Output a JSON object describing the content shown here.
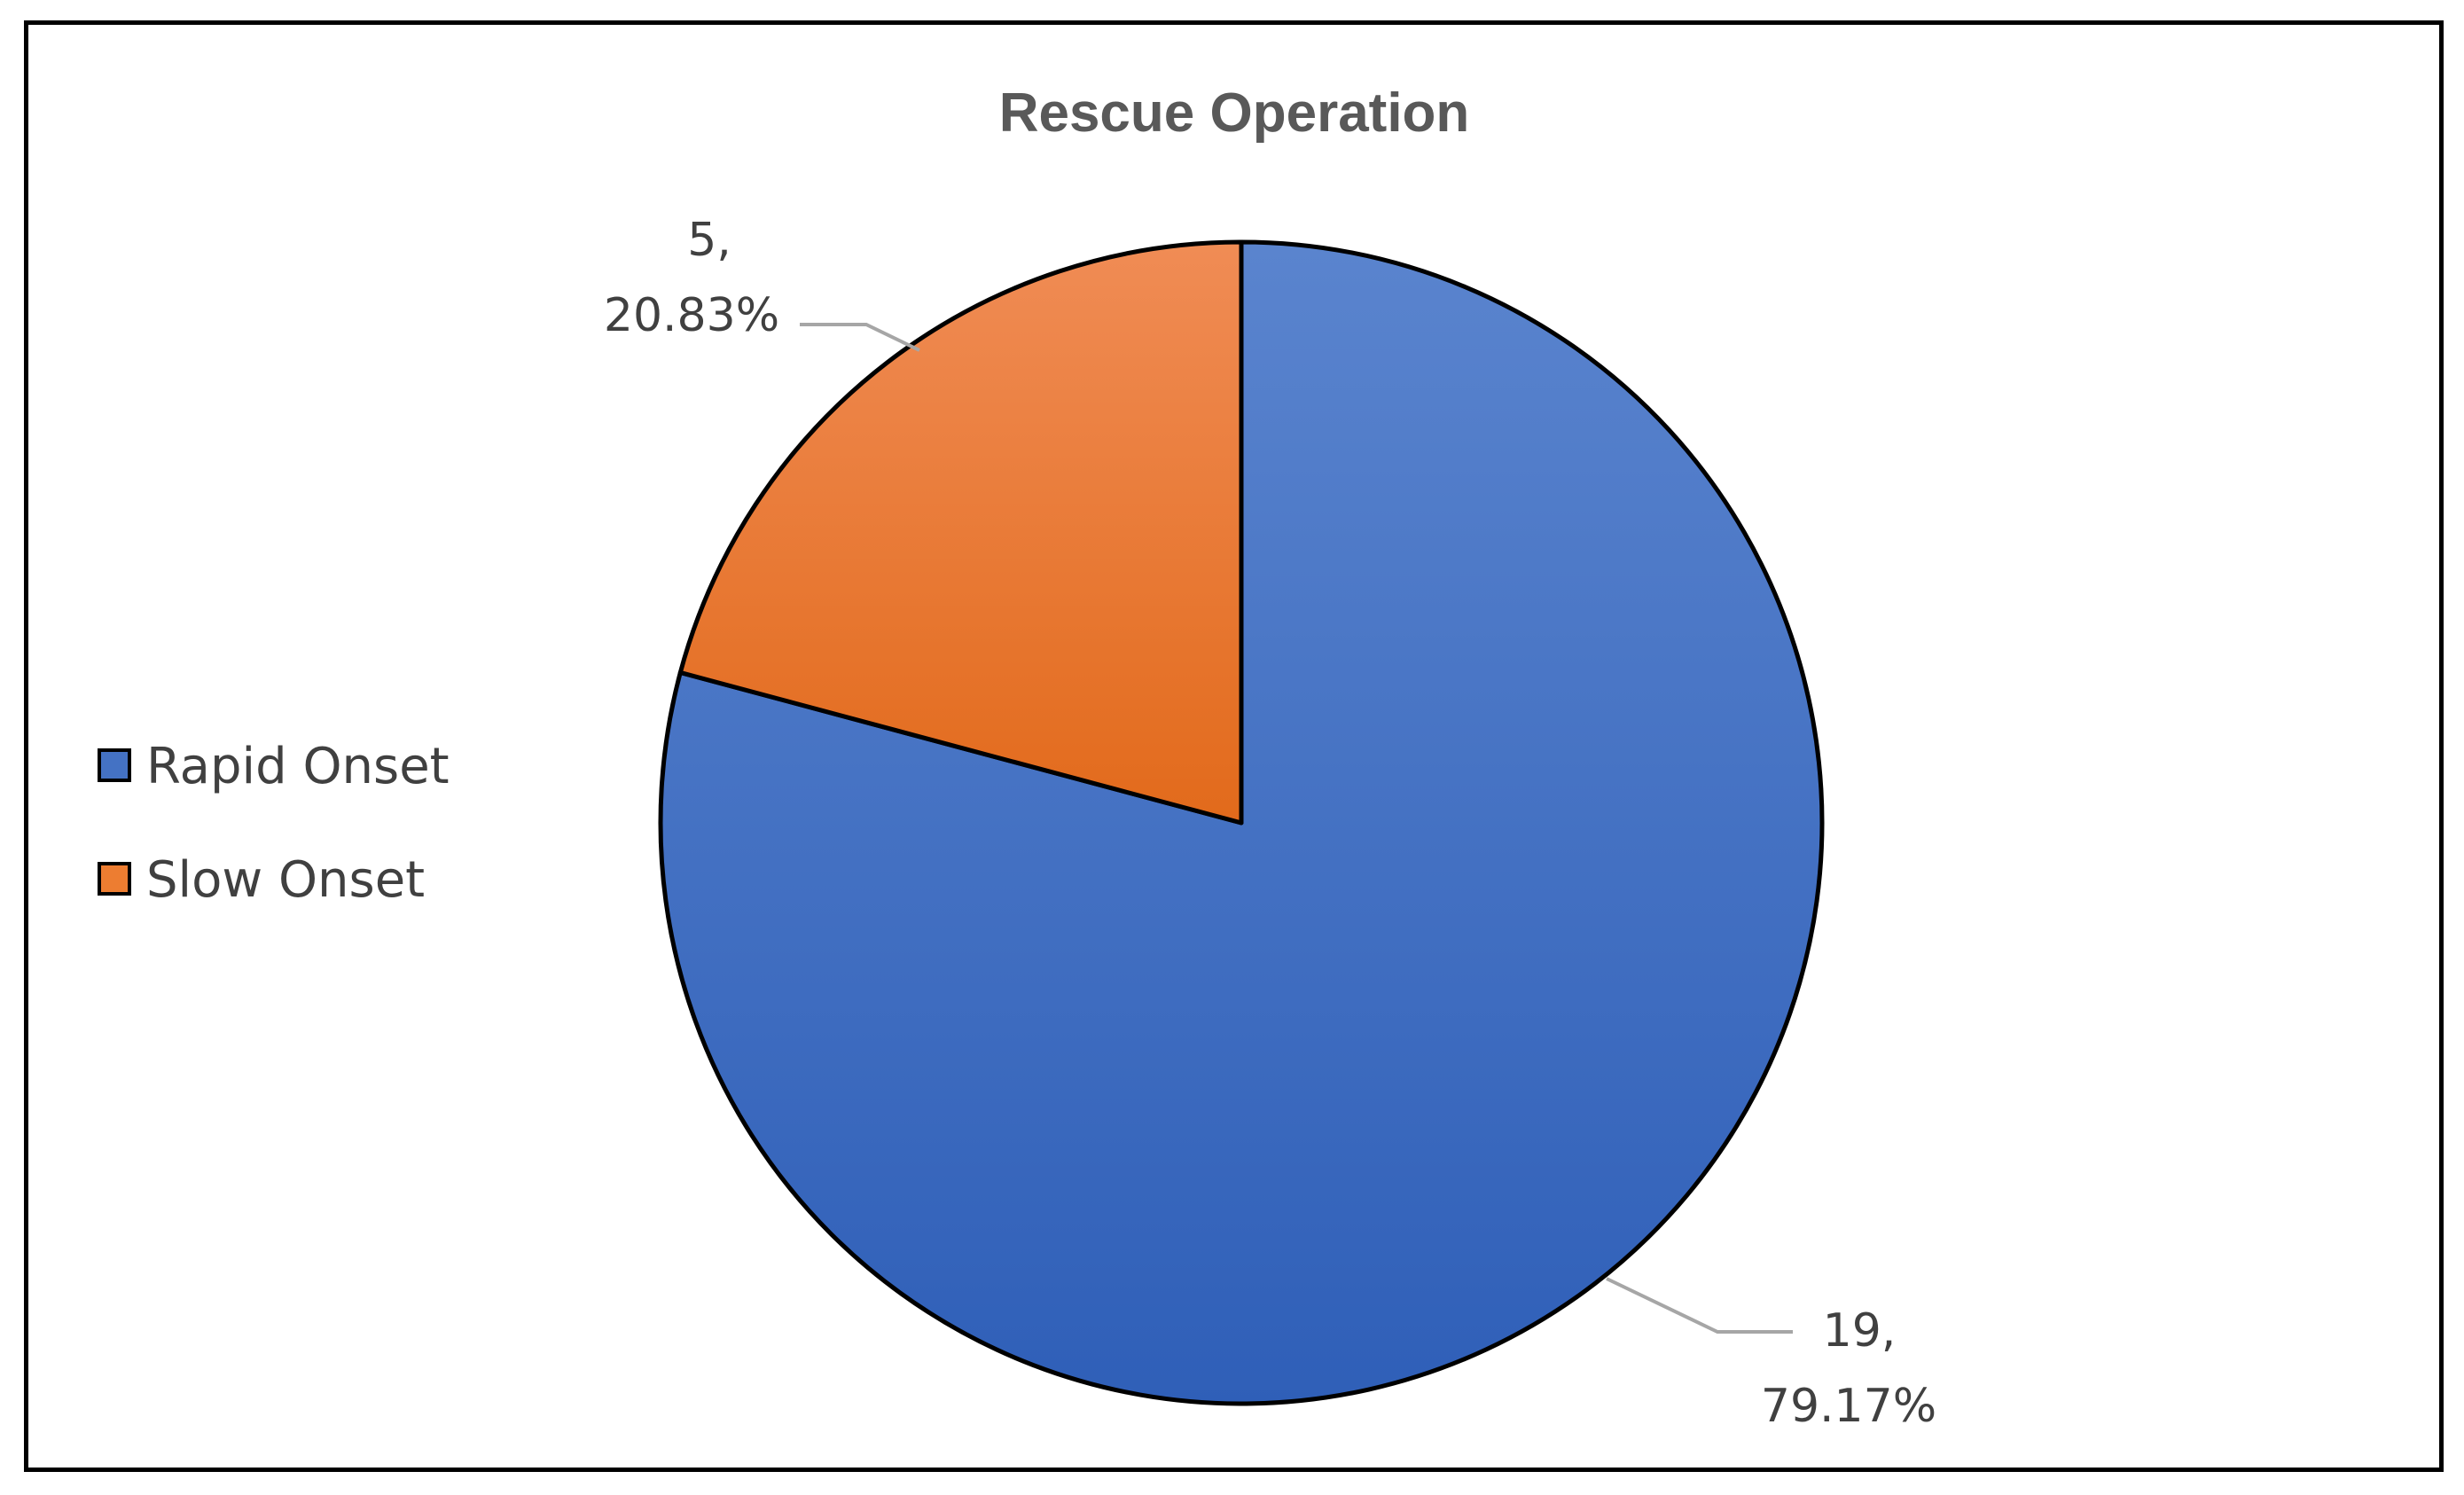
{
  "chart_data": {
    "type": "pie",
    "title": "Rescue Operation",
    "start_angle_deg": 0,
    "direction": "clockwise",
    "slices": [
      {
        "label": "Rapid Onset",
        "value": 19,
        "percent": "79.17%",
        "value_text": "19,",
        "color": "#4472C4",
        "color_light": "#5A84CE",
        "color_dark": "#2F5FB8"
      },
      {
        "label": "Slow Onset",
        "value": 5,
        "percent": "20.83%",
        "value_text": "5,",
        "color": "#ED7D31",
        "color_light": "#F08C55",
        "color_dark": "#E26A1B"
      }
    ],
    "legend": {
      "position": "left",
      "items": [
        "Rapid Onset",
        "Slow Onset"
      ]
    },
    "slice_outline_color": "#000000",
    "leader_line_color": "#A6A6A6"
  }
}
